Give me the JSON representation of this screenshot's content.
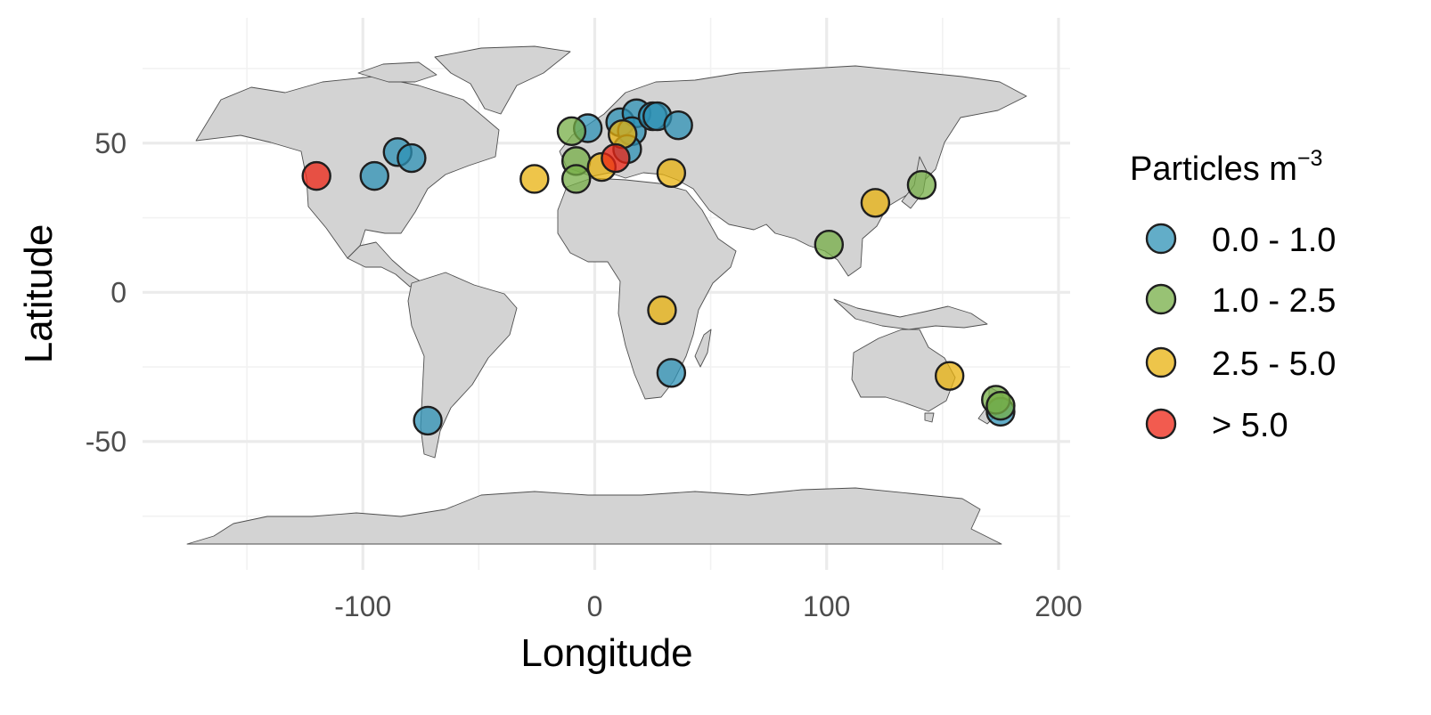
{
  "chart_data": {
    "type": "scatter",
    "xlabel": "Longitude",
    "ylabel": "Latitude",
    "xlim": [
      -195,
      205
    ],
    "ylim": [
      -93,
      92
    ],
    "x_ticks": [
      {
        "value": -100,
        "label": "-100"
      },
      {
        "value": 0,
        "label": "0"
      },
      {
        "value": 100,
        "label": "100"
      },
      {
        "value": 200,
        "label": "200"
      }
    ],
    "y_ticks": [
      {
        "value": 50,
        "label": "50"
      },
      {
        "value": 0,
        "label": "0"
      },
      {
        "value": -50,
        "label": "-50"
      }
    ],
    "x_minor_ticks": [
      -150,
      -50,
      50,
      150
    ],
    "y_minor_ticks": [
      75,
      25,
      -25,
      -75
    ],
    "grid": true,
    "basemap": "world countries (light grey land, dark grey borders)",
    "legend": {
      "title": "Particles m",
      "title_superscript": "−3",
      "placement": "right"
    },
    "classes": [
      {
        "label": "0.0 - 1.0",
        "color": "#2E92B5"
      },
      {
        "label": "1.0 - 2.5",
        "color": "#75AD45"
      },
      {
        "label": "2.5 - 5.0",
        "color": "#E8B20E"
      },
      {
        "label": "> 5.0",
        "color": "#EE2414"
      }
    ],
    "points": [
      {
        "lon": -95,
        "lat": 39,
        "class": 0
      },
      {
        "lon": -85,
        "lat": 47,
        "class": 0
      },
      {
        "lon": -79,
        "lat": 45,
        "class": 0
      },
      {
        "lon": -72,
        "lat": -43,
        "class": 0
      },
      {
        "lon": -3,
        "lat": 55,
        "class": 0
      },
      {
        "lon": 11,
        "lat": 57,
        "class": 0
      },
      {
        "lon": 18,
        "lat": 60,
        "class": 0
      },
      {
        "lon": 16,
        "lat": 54,
        "class": 0
      },
      {
        "lon": 14,
        "lat": 48,
        "class": 0
      },
      {
        "lon": 25,
        "lat": 59,
        "class": 0
      },
      {
        "lon": 27,
        "lat": 59,
        "class": 0
      },
      {
        "lon": 36,
        "lat": 56,
        "class": 0
      },
      {
        "lon": 33,
        "lat": -27,
        "class": 0
      },
      {
        "lon": 175,
        "lat": -40,
        "class": 0
      },
      {
        "lon": -10,
        "lat": 54,
        "class": 1
      },
      {
        "lon": -8,
        "lat": 44,
        "class": 1
      },
      {
        "lon": -8,
        "lat": 38,
        "class": 1
      },
      {
        "lon": 101,
        "lat": 16,
        "class": 1
      },
      {
        "lon": 141,
        "lat": 36,
        "class": 1
      },
      {
        "lon": 173,
        "lat": -36,
        "class": 1
      },
      {
        "lon": 175,
        "lat": -38,
        "class": 1
      },
      {
        "lon": -26,
        "lat": 38,
        "class": 2
      },
      {
        "lon": 3,
        "lat": 42,
        "class": 2
      },
      {
        "lon": 12,
        "lat": 53,
        "class": 2
      },
      {
        "lon": 33,
        "lat": 40,
        "class": 2
      },
      {
        "lon": 121,
        "lat": 30,
        "class": 2
      },
      {
        "lon": 29,
        "lat": -6,
        "class": 2
      },
      {
        "lon": 153,
        "lat": -28,
        "class": 2
      },
      {
        "lon": -120,
        "lat": 39,
        "class": 3
      },
      {
        "lon": 9,
        "lat": 45,
        "class": 3
      }
    ]
  }
}
